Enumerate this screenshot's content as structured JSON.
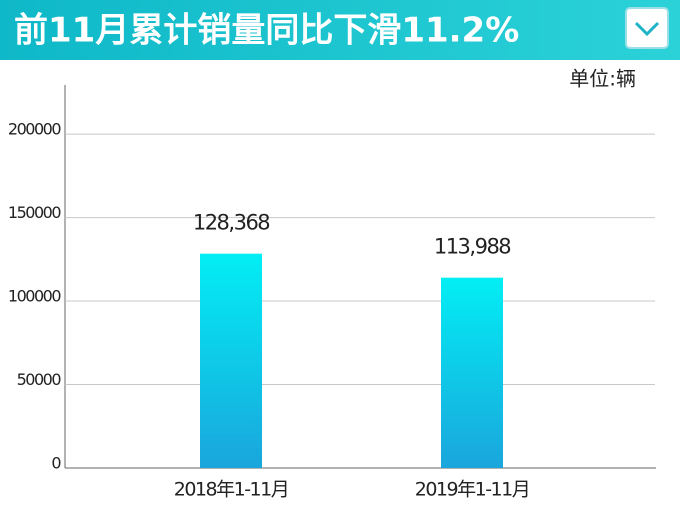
{
  "chart_data": {
    "type": "bar",
    "title": "前11月累计销量同比下滑11.2%",
    "unit": "单位:辆",
    "categories": [
      "2018年1-11月",
      "2019年1-11月"
    ],
    "values": [
      128368,
      113988
    ],
    "value_labels": [
      "128,368",
      "113,988"
    ],
    "gradient": [
      "#02eef4",
      "#1aa6dc"
    ],
    "ylim": [
      0,
      230000
    ],
    "yticks": [
      0,
      50000,
      100000,
      150000,
      200000
    ],
    "grid": true
  }
}
